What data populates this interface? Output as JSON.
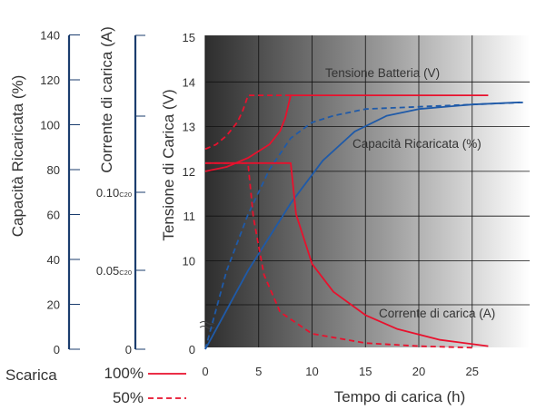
{
  "chart_data": {
    "type": "line",
    "xlabel": "Tempo di carica (h)",
    "xlim": [
      0,
      30
    ],
    "x_ticks": [
      "0",
      "5",
      "10",
      "15",
      "20",
      "25"
    ],
    "grid": true,
    "axes": {
      "capacity": {
        "label": "Capacità Ricaricata  (%)",
        "range": [
          0,
          140
        ],
        "ticks": [
          "0",
          "20",
          "40",
          "60",
          "80",
          "100",
          "120",
          "140"
        ]
      },
      "current": {
        "label": "Corrente di carica (A)",
        "ticks": [
          {
            "main": "0",
            "sub": ""
          },
          {
            "main": "0.05",
            "sub": "C20"
          },
          {
            "main": "0.10",
            "sub": "C20"
          }
        ]
      },
      "voltage": {
        "label": "Tensione di Carica (V)",
        "range": [
          10,
          15
        ],
        "ticks": [
          "0",
          "10",
          "11",
          "12",
          "13",
          "14",
          "15"
        ]
      }
    },
    "annotations": {
      "voltage": "Tensione Batteria (V)",
      "capacity": "Capacità Ricaricata (%)",
      "current": "Corrente di carica (A)"
    },
    "legend": {
      "title": "Scarica",
      "entries": [
        {
          "label": "100%",
          "style": "solid",
          "color": "#e8112d"
        },
        {
          "label": "50%",
          "style": "dashed",
          "color": "#e8112d"
        }
      ]
    },
    "series": [
      {
        "quantity": "voltage",
        "discharge": "100%",
        "style": "solid",
        "color": "#e8112d",
        "x": [
          0,
          2,
          4,
          6,
          7,
          7.5,
          8,
          26.5
        ],
        "y": [
          12.0,
          12.1,
          12.3,
          12.6,
          12.9,
          13.2,
          13.7,
          13.7
        ]
      },
      {
        "quantity": "voltage",
        "discharge": "50%",
        "style": "dashed",
        "color": "#e8112d",
        "x": [
          0,
          1,
          2,
          3,
          3.5,
          3.8,
          4,
          8
        ],
        "y": [
          12.5,
          12.6,
          12.8,
          13.1,
          13.35,
          13.55,
          13.7,
          13.7
        ]
      },
      {
        "quantity": "capacity",
        "discharge": "100%",
        "style": "solid",
        "color": "#1f5aa8",
        "x": [
          0,
          4,
          8,
          11,
          14,
          17,
          20,
          25,
          29.5
        ],
        "y": [
          0,
          35,
          65,
          84,
          97,
          104,
          107,
          109,
          110
        ]
      },
      {
        "quantity": "capacity",
        "discharge": "50%",
        "style": "dashed",
        "color": "#1f5aa8",
        "x": [
          0,
          2,
          4,
          6,
          8,
          10,
          12,
          15,
          20,
          25,
          30
        ],
        "y": [
          0,
          35,
          60,
          80,
          94,
          101,
          104,
          107,
          108,
          109,
          110
        ]
      },
      {
        "quantity": "current",
        "unit": "C20",
        "discharge": "100%",
        "style": "solid",
        "color": "#e8112d",
        "x": [
          0,
          8,
          8.5,
          10,
          12,
          15,
          18,
          22,
          26.5
        ],
        "y": [
          0.12,
          0.12,
          0.087,
          0.055,
          0.037,
          0.022,
          0.013,
          0.006,
          0.002
        ]
      },
      {
        "quantity": "current",
        "unit": "C20",
        "discharge": "50%",
        "style": "dashed",
        "color": "#e8112d",
        "x": [
          0,
          4,
          4.5,
          5.5,
          7,
          10,
          15,
          20,
          25
        ],
        "y": [
          0.12,
          0.12,
          0.085,
          0.048,
          0.024,
          0.01,
          0.004,
          0.002,
          0.001
        ]
      }
    ]
  }
}
